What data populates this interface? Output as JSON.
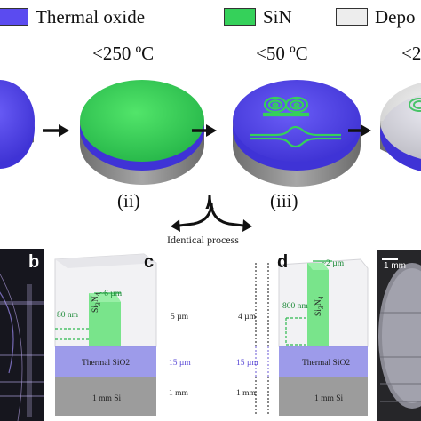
{
  "legend": {
    "items": [
      {
        "label": "Thermal oxide",
        "color": "#5b4bf0"
      },
      {
        "label": "SiN",
        "color": "#35d15a"
      },
      {
        "label": "Depo",
        "color": "#ededed"
      }
    ]
  },
  "steps": {
    "temp_ii": "<250 ºC",
    "temp_iii": "<50 ºC",
    "temp_iv": "<2",
    "label_ii": "(ii)",
    "label_iii": "(iii)",
    "identical_process": "Identical process"
  },
  "panels": {
    "b": {
      "letter": "b"
    },
    "c": {
      "letter": "c",
      "material_label": "Si3N4",
      "width_label": "~6 µm",
      "height_label": "80 nm",
      "layer_thickness": "5 µm",
      "oxide_label": "Thermal SiO2",
      "oxide_thickness": "15 µm",
      "substrate_label": "1 mm Si",
      "substrate_thickness": "1 mm"
    },
    "d": {
      "letter": "d",
      "material_label": "Si3N4",
      "width_label": "~2 µm",
      "height_label": "800 nm",
      "layer_thickness": "4 µm",
      "oxide_label": "Thermal SiO2",
      "oxide_thickness": "15 µm",
      "substrate_label": "1 mm Si",
      "substrate_thickness": "1 mm"
    },
    "e": {
      "scale_label": "1 mm"
    }
  },
  "colors": {
    "oxide": "#5b4bf0",
    "sin": "#35d15a",
    "depo": "#ededed",
    "si": "#8a8a8a"
  }
}
